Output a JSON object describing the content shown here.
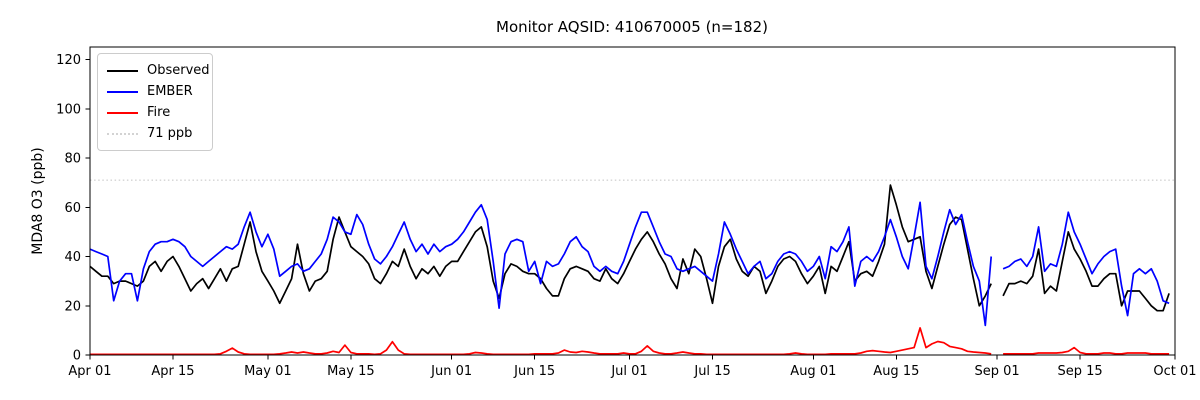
{
  "chart_data": {
    "type": "line",
    "title": "Monitor AQSID: 410670005 (n=182)",
    "xlabel": "",
    "ylabel": "MDA8 O3 (ppb)",
    "ylim": [
      0,
      125
    ],
    "y_ticks": [
      0,
      20,
      40,
      60,
      80,
      100,
      120
    ],
    "x_ticks": [
      {
        "label": "Apr 01",
        "day": 0
      },
      {
        "label": "Apr 15",
        "day": 14
      },
      {
        "label": "May 01",
        "day": 30
      },
      {
        "label": "May 15",
        "day": 44
      },
      {
        "label": "Jun 01",
        "day": 61
      },
      {
        "label": "Jun 15",
        "day": 75
      },
      {
        "label": "Jul 01",
        "day": 91
      },
      {
        "label": "Jul 15",
        "day": 105
      },
      {
        "label": "Aug 01",
        "day": 122
      },
      {
        "label": "Aug 15",
        "day": 136
      },
      {
        "label": "Sep 01",
        "day": 153
      },
      {
        "label": "Sep 15",
        "day": 167
      },
      {
        "label": "Oct 01",
        "day": 183
      }
    ],
    "x_range_days": 183,
    "start_date": "Apr 01",
    "end_date": "Sep 30",
    "missing_day": "Sep 01",
    "n_points": 182,
    "grid": false,
    "legend_position": "upper left",
    "threshold": {
      "label": "71 ppb",
      "value": 71,
      "color": "#d3d3d3",
      "style": "dotted"
    },
    "series": [
      {
        "name": "Observed",
        "color": "#000000",
        "values": [
          36,
          34,
          32,
          32,
          29,
          30,
          30,
          29,
          28,
          30,
          36,
          38,
          34,
          38,
          40,
          36,
          31,
          26,
          29,
          31,
          27,
          31,
          35,
          30,
          35,
          36,
          45,
          54,
          42,
          34,
          30,
          26,
          21,
          26,
          31,
          45,
          33,
          26,
          30,
          31,
          34,
          47,
          56,
          50,
          44,
          42,
          40,
          37,
          31,
          29,
          33,
          38,
          36,
          43,
          36,
          31,
          35,
          33,
          36,
          32,
          36,
          38,
          38,
          42,
          46,
          50,
          52,
          44,
          30,
          23,
          33,
          37,
          36,
          34,
          33,
          33,
          31,
          27,
          24,
          24,
          31,
          35,
          36,
          35,
          34,
          31,
          30,
          35,
          31,
          29,
          33,
          38,
          43,
          47,
          50,
          46,
          41,
          37,
          31,
          27,
          39,
          33,
          43,
          40,
          31,
          21,
          36,
          44,
          47,
          39,
          34,
          32,
          36,
          34,
          25,
          30,
          36,
          39,
          40,
          38,
          33,
          29,
          32,
          36,
          25,
          36,
          34,
          40,
          46,
          30,
          33,
          34,
          32,
          38,
          45,
          69,
          61,
          52,
          46,
          47,
          48,
          34,
          27,
          36,
          45,
          53,
          56,
          55,
          43,
          31,
          20,
          24,
          29,
          null,
          24,
          29,
          29,
          30,
          29,
          32,
          43,
          25,
          28,
          26,
          38,
          50,
          43,
          39,
          34,
          28,
          28,
          31,
          33,
          33,
          20,
          26,
          26,
          26,
          23,
          20,
          18,
          18,
          25
        ]
      },
      {
        "name": "EMBER",
        "color": "#0000ff",
        "values": [
          43,
          42,
          41,
          40,
          22,
          30,
          33,
          33,
          22,
          35,
          42,
          45,
          46,
          46,
          47,
          46,
          44,
          40,
          38,
          36,
          38,
          40,
          42,
          44,
          43,
          45,
          52,
          58,
          50,
          44,
          49,
          43,
          32,
          34,
          36,
          37,
          34,
          35,
          38,
          41,
          47,
          56,
          54,
          50,
          49,
          57,
          53,
          45,
          39,
          37,
          40,
          44,
          49,
          54,
          47,
          42,
          45,
          41,
          45,
          42,
          44,
          45,
          47,
          50,
          54,
          58,
          61,
          55,
          38,
          19,
          41,
          46,
          47,
          46,
          34,
          38,
          29,
          38,
          36,
          37,
          41,
          46,
          48,
          44,
          42,
          36,
          34,
          36,
          34,
          33,
          38,
          45,
          52,
          58,
          58,
          52,
          46,
          41,
          40,
          35,
          34,
          35,
          36,
          34,
          32,
          30,
          41,
          54,
          49,
          43,
          38,
          33,
          36,
          38,
          31,
          33,
          38,
          41,
          42,
          41,
          38,
          34,
          36,
          40,
          31,
          44,
          42,
          46,
          52,
          28,
          38,
          40,
          38,
          42,
          48,
          55,
          48,
          40,
          35,
          48,
          62,
          36,
          31,
          40,
          50,
          59,
          53,
          57,
          46,
          36,
          30,
          12,
          40,
          null,
          35,
          36,
          38,
          39,
          36,
          40,
          52,
          34,
          37,
          36,
          45,
          58,
          50,
          45,
          39,
          33,
          37,
          40,
          42,
          43,
          28,
          16,
          33,
          35,
          33,
          35,
          30,
          22,
          21
        ]
      },
      {
        "name": "Fire",
        "color": "#ff0000",
        "values": [
          0.3,
          0.3,
          0.3,
          0.3,
          0.3,
          0.3,
          0.3,
          0.3,
          0.3,
          0.3,
          0.3,
          0.3,
          0.3,
          0.3,
          0.3,
          0.3,
          0.3,
          0.3,
          0.3,
          0.3,
          0.3,
          0.3,
          0.5,
          1.5,
          2.8,
          1.2,
          0.5,
          0.3,
          0.3,
          0.3,
          0.3,
          0.3,
          0.5,
          0.8,
          1.2,
          0.8,
          1.2,
          0.8,
          0.5,
          0.5,
          0.8,
          1.5,
          1.0,
          4.0,
          1.0,
          0.5,
          0.5,
          0.5,
          0.3,
          0.5,
          2.0,
          5.4,
          2.0,
          0.5,
          0.3,
          0.3,
          0.3,
          0.3,
          0.3,
          0.3,
          0.3,
          0.3,
          0.3,
          0.3,
          0.5,
          1.0,
          0.8,
          0.5,
          0.3,
          0.3,
          0.3,
          0.3,
          0.3,
          0.3,
          0.3,
          0.5,
          0.5,
          0.5,
          0.5,
          0.8,
          2.0,
          1.2,
          1.0,
          1.5,
          1.2,
          0.8,
          0.5,
          0.5,
          0.5,
          0.5,
          0.8,
          0.5,
          0.5,
          1.5,
          3.7,
          1.5,
          0.8,
          0.5,
          0.5,
          0.8,
          1.2,
          0.8,
          0.5,
          0.5,
          0.3,
          0.3,
          0.3,
          0.3,
          0.3,
          0.3,
          0.3,
          0.3,
          0.3,
          0.3,
          0.3,
          0.3,
          0.3,
          0.3,
          0.5,
          0.8,
          0.5,
          0.3,
          0.3,
          0.3,
          0.3,
          0.5,
          0.5,
          0.5,
          0.5,
          0.5,
          0.8,
          1.5,
          1.8,
          1.5,
          1.2,
          1.0,
          1.5,
          2.0,
          2.5,
          3.0,
          11.0,
          3.0,
          4.5,
          5.5,
          5.0,
          3.5,
          3.0,
          2.5,
          1.5,
          1.2,
          1.0,
          0.8,
          0.5,
          null,
          0.5,
          0.5,
          0.5,
          0.5,
          0.5,
          0.5,
          0.8,
          0.8,
          0.8,
          0.8,
          1.0,
          1.5,
          3.0,
          1.0,
          0.5,
          0.5,
          0.5,
          0.8,
          0.8,
          0.5,
          0.5,
          0.8,
          0.8,
          0.8,
          0.8,
          0.5,
          0.5,
          0.5,
          0.5
        ]
      }
    ]
  }
}
